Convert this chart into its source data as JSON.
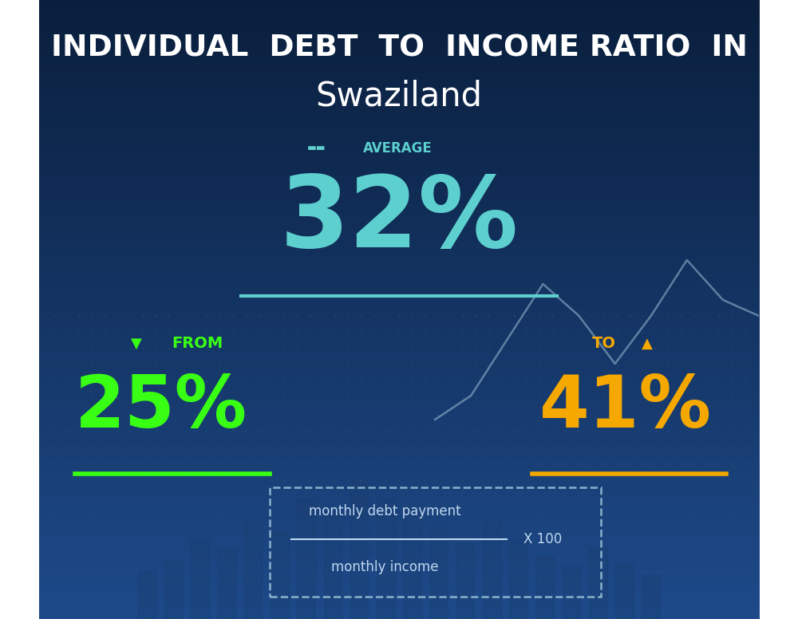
{
  "title_line1": "INDIVIDUAL  DEBT  TO  INCOME RATIO  IN",
  "title_line2": "Swaziland",
  "avg_label": "AVERAGE",
  "avg_value": "32%",
  "from_label": "FROM",
  "from_value": "25%",
  "to_label": "TO",
  "to_value": "41%",
  "formula_numerator": "monthly debt payment",
  "formula_denominator": "monthly income",
  "formula_multiplier": "X 100",
  "bg_color_top": "#0d2a4e",
  "bg_color_bottom": "#1a3a6e",
  "avg_color": "#5dcfcf",
  "from_color": "#39ff14",
  "to_color": "#f5a800",
  "title_color": "#ffffff",
  "avg_label_color": "#5dcfcf",
  "formula_text_color": "#c0d8f0",
  "line_color_avg": "#5dcfcf",
  "line_color_from": "#39ff14",
  "line_color_to": "#f5a800"
}
